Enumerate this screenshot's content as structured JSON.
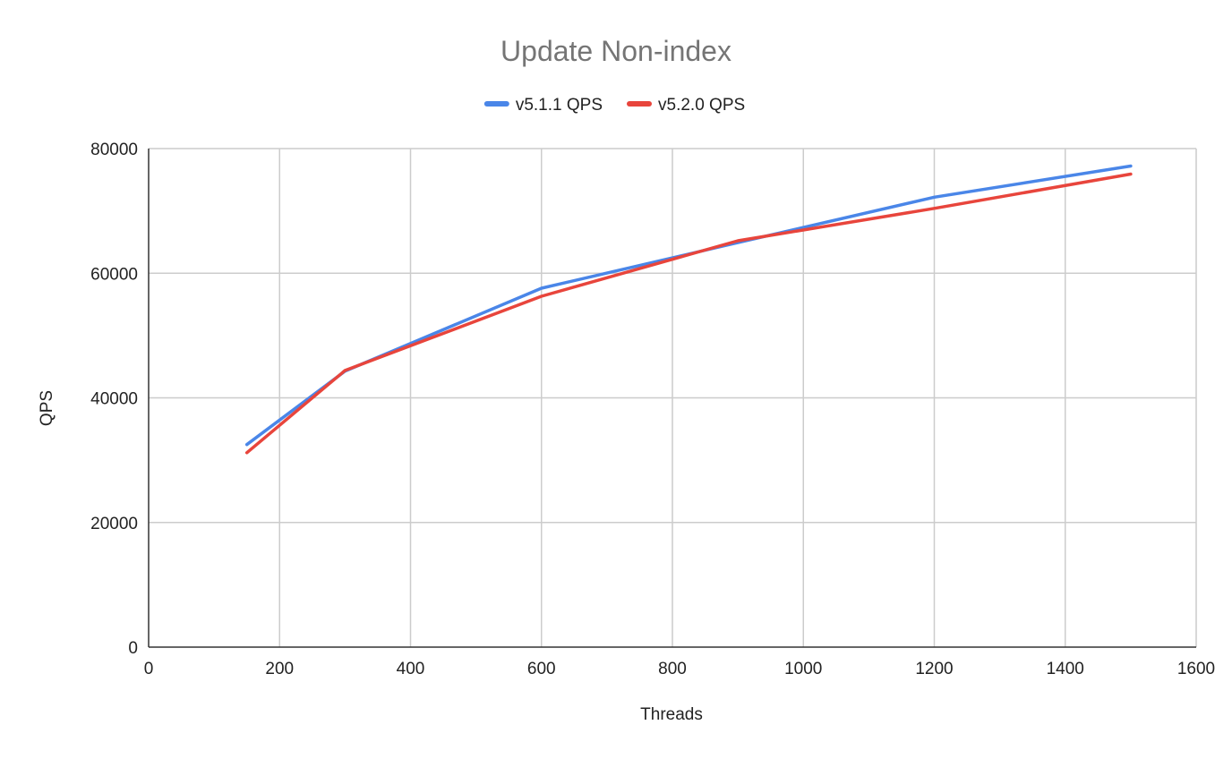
{
  "chart_data": {
    "type": "line",
    "title": "Update Non-index",
    "xlabel": "Threads",
    "ylabel": "QPS",
    "xlim": [
      0,
      1600
    ],
    "ylim": [
      0,
      80000
    ],
    "x_ticks": [
      0,
      200,
      400,
      600,
      800,
      1000,
      1200,
      1400,
      1600
    ],
    "y_ticks": [
      0,
      20000,
      40000,
      60000,
      80000
    ],
    "x_tick_labels": [
      "0",
      "200",
      "400",
      "600",
      "800",
      "1000",
      "1200",
      "1400",
      "1600"
    ],
    "y_tick_labels": [
      "0",
      "20000",
      "40000",
      "60000",
      "80000"
    ],
    "grid": true,
    "legend_position": "top",
    "series": [
      {
        "name": "v5.1.1 QPS",
        "color": "#4a86e8",
        "x": [
          150,
          300,
          600,
          900,
          1200,
          1500
        ],
        "values": [
          32500,
          44300,
          57600,
          64900,
          72200,
          77200
        ]
      },
      {
        "name": "v5.2.0 QPS",
        "color": "#e8453c",
        "x": [
          150,
          300,
          600,
          900,
          1200,
          1500
        ],
        "values": [
          31200,
          44400,
          56300,
          65200,
          70400,
          75900
        ]
      }
    ]
  }
}
